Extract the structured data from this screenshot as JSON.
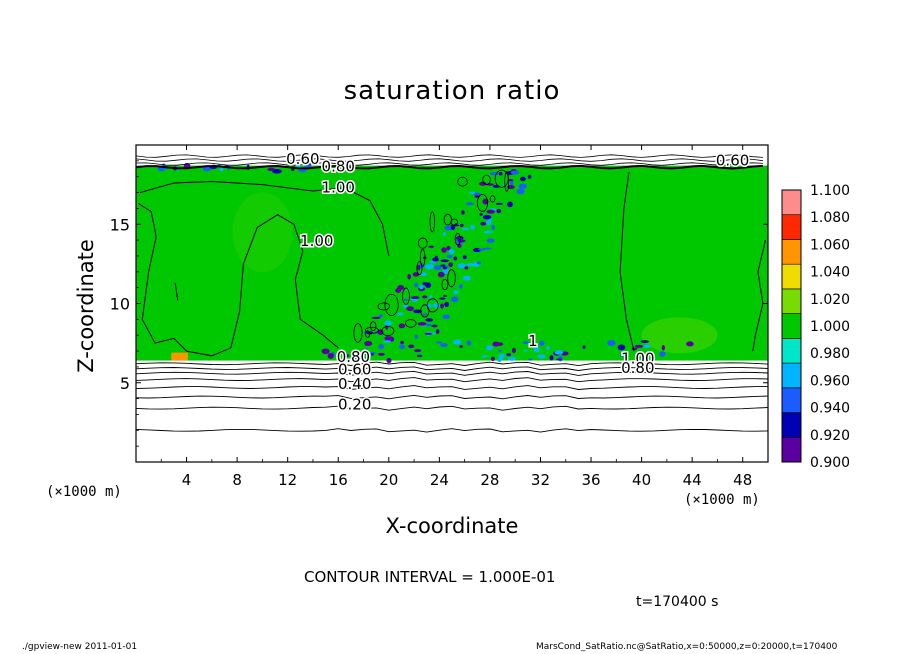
{
  "chart_data": {
    "type": "heatmap",
    "title": "saturation ratio",
    "xlabel": "X-coordinate",
    "ylabel": "Z-coordinate",
    "x_unit_label": "(×1000 m)",
    "x_unit_label_right": "(×1000 m)",
    "xlim": [
      0,
      50
    ],
    "ylim": [
      0,
      20
    ],
    "xticks": [
      4,
      8,
      12,
      16,
      20,
      24,
      28,
      32,
      36,
      40,
      44,
      48
    ],
    "yticks": [
      5,
      10,
      15
    ],
    "colorbar": {
      "levels": [
        0.9,
        0.92,
        0.94,
        0.96,
        0.98,
        1.0,
        1.02,
        1.04,
        1.06,
        1.08,
        1.1
      ],
      "labels": [
        "0.900",
        "0.920",
        "0.940",
        "0.960",
        "0.980",
        "1.000",
        "1.020",
        "1.040",
        "1.060",
        "1.080",
        "1.100"
      ],
      "colors": [
        "#5a00a0",
        "#0000b4",
        "#1a5cff",
        "#00b4ff",
        "#00e6c8",
        "#00c800",
        "#78dc00",
        "#f0dc00",
        "#ff9600",
        "#ff2800",
        "#ff8c8c"
      ]
    },
    "contour_labels": [
      {
        "text": "0.60",
        "x": 13.2,
        "z": 19.1
      },
      {
        "text": "0.80",
        "x": 16.0,
        "z": 18.6
      },
      {
        "text": "1.00",
        "x": 16.0,
        "z": 17.3
      },
      {
        "text": "0.60",
        "x": 47.2,
        "z": 19.0
      },
      {
        "text": "1.00",
        "x": 14.3,
        "z": 13.9
      },
      {
        "text": "0.80",
        "x": 17.2,
        "z": 6.6
      },
      {
        "text": "0.60",
        "x": 17.3,
        "z": 5.8
      },
      {
        "text": "0.40",
        "x": 17.3,
        "z": 4.9
      },
      {
        "text": "0.20",
        "x": 17.3,
        "z": 3.6
      },
      {
        "text": "1.00",
        "x": 39.7,
        "z": 6.5
      },
      {
        "text": "0.80",
        "x": 39.7,
        "z": 5.9
      },
      {
        "text": "1",
        "x": 31.4,
        "z": 7.6
      }
    ],
    "low_contours_z": [
      2.0,
      3.4,
      4.1,
      4.7,
      5.2,
      5.6,
      5.9,
      6.2
    ],
    "contour_interval": "CONTOUR INTERVAL = 1.000E-01",
    "time": "t=170400 s"
  },
  "footer": {
    "left": "./gpview-new   2011-01-01",
    "right": "MarsCond_SatRatio.nc@SatRatio,x=0:50000,z=0:20000,t=170400"
  }
}
